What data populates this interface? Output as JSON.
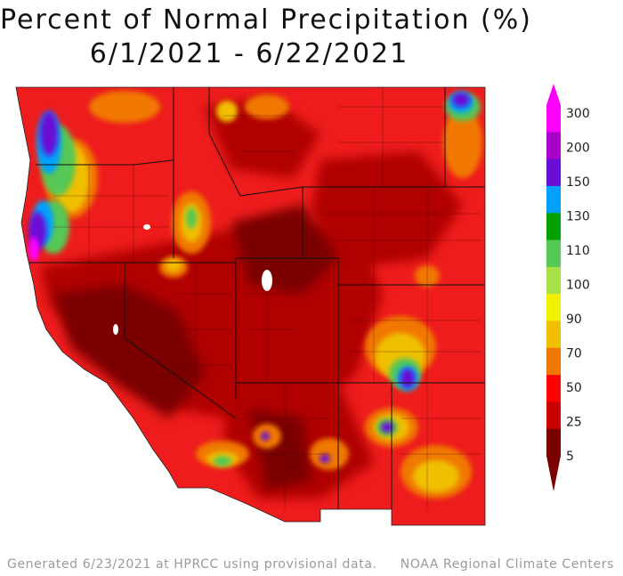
{
  "map": {
    "title": "Percent of Normal Precipitation (%)",
    "date_range": "6/1/2021 - 6/22/2021",
    "region": "Western United States",
    "dominant_category": "5-25",
    "notable_wet_areas": [
      {
        "area": "western Washington / Oregon coast",
        "category": "150-300"
      },
      {
        "area": "northeastern Montana",
        "category": "150-300"
      },
      {
        "area": "east-central New Mexico",
        "category": "150-300"
      },
      {
        "area": "southern New Mexico",
        "category": "150-300"
      },
      {
        "area": "eastern Arizona",
        "category": "150-300"
      }
    ]
  },
  "legend": {
    "labels": [
      "300",
      "200",
      "150",
      "130",
      "110",
      "100",
      "90",
      "70",
      "50",
      "25",
      "5"
    ],
    "colors": [
      "#ff00ff",
      "#aa00cc",
      "#6a0dd6",
      "#00a0ff",
      "#00a000",
      "#55c855",
      "#a8e048",
      "#f0f000",
      "#f0c000",
      "#f07800",
      "#ff0000",
      "#c80000",
      "#7a0000"
    ]
  },
  "footer": {
    "left": "Generated 6/23/2021 at HPRCC using provisional data.",
    "right": "NOAA Regional Climate Centers"
  }
}
